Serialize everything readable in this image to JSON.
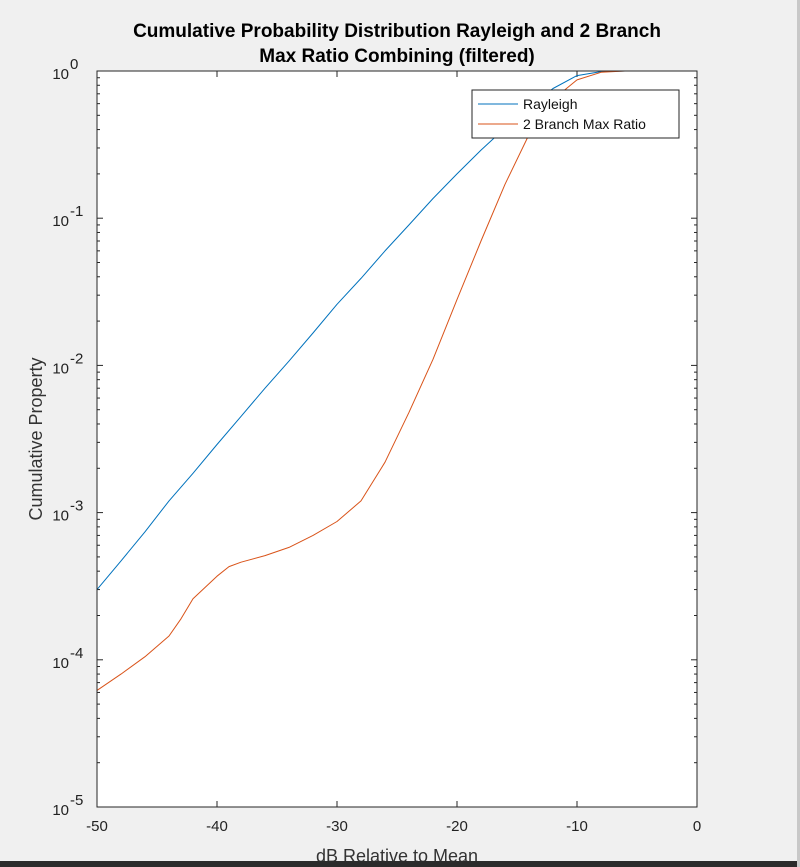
{
  "chart_data": {
    "type": "line",
    "title": [
      "Cumulative Probability Distribution Rayleigh and 2 Branch",
      "Max Ratio Combining (filtered)"
    ],
    "xlabel": "dB Relative to Mean",
    "ylabel": "Cumulative Property",
    "xlim": [
      -50,
      0
    ],
    "ylim": [
      1e-05,
      1
    ],
    "yscale": "log",
    "x_ticks": [
      -50,
      -40,
      -30,
      -20,
      -10,
      0
    ],
    "x_tick_labels": [
      "-50",
      "-40",
      "-30",
      "-20",
      "-10",
      "0"
    ],
    "y_ticks": [
      1e-05,
      0.0001,
      0.001,
      0.01,
      0.1,
      1
    ],
    "y_tick_labels": [
      {
        "base": "10",
        "exp": "-5"
      },
      {
        "base": "10",
        "exp": "-4"
      },
      {
        "base": "10",
        "exp": "-3"
      },
      {
        "base": "10",
        "exp": "-2"
      },
      {
        "base": "10",
        "exp": "-1"
      },
      {
        "base": "10",
        "exp": "0"
      }
    ],
    "grid": false,
    "legend_position": "top-right",
    "series": [
      {
        "name": "Rayleigh",
        "color": "#0072BD",
        "x": [
          -50,
          -48,
          -46,
          -44,
          -42,
          -40,
          -38,
          -36,
          -34,
          -32,
          -30,
          -28,
          -26,
          -24,
          -22,
          -20,
          -18,
          -16,
          -14,
          -12,
          -10,
          -8,
          -6,
          -4,
          -2
        ],
        "y": [
          0.0003,
          0.00047,
          0.00074,
          0.0012,
          0.00185,
          0.0029,
          0.0045,
          0.007,
          0.0107,
          0.0166,
          0.026,
          0.039,
          0.06,
          0.09,
          0.136,
          0.2,
          0.29,
          0.41,
          0.57,
          0.76,
          0.93,
          0.99,
          1.0,
          1.0,
          1.0
        ]
      },
      {
        "name": "2 Branch Max Ratio",
        "color": "#D95319",
        "x": [
          -50,
          -48,
          -46,
          -44,
          -43,
          -42,
          -41,
          -40,
          -39,
          -38,
          -36,
          -34,
          -32,
          -30,
          -28,
          -26,
          -24,
          -22,
          -20,
          -18,
          -16,
          -14,
          -12,
          -10,
          -8,
          -6,
          -4,
          -2
        ],
        "y": [
          6.2e-05,
          8e-05,
          0.000105,
          0.000145,
          0.00019,
          0.00026,
          0.00031,
          0.00037,
          0.00043,
          0.00046,
          0.00051,
          0.00058,
          0.0007,
          0.00087,
          0.0012,
          0.0022,
          0.0048,
          0.011,
          0.028,
          0.07,
          0.17,
          0.37,
          0.64,
          0.87,
          0.98,
          1.0,
          1.0,
          1.0
        ]
      }
    ]
  }
}
